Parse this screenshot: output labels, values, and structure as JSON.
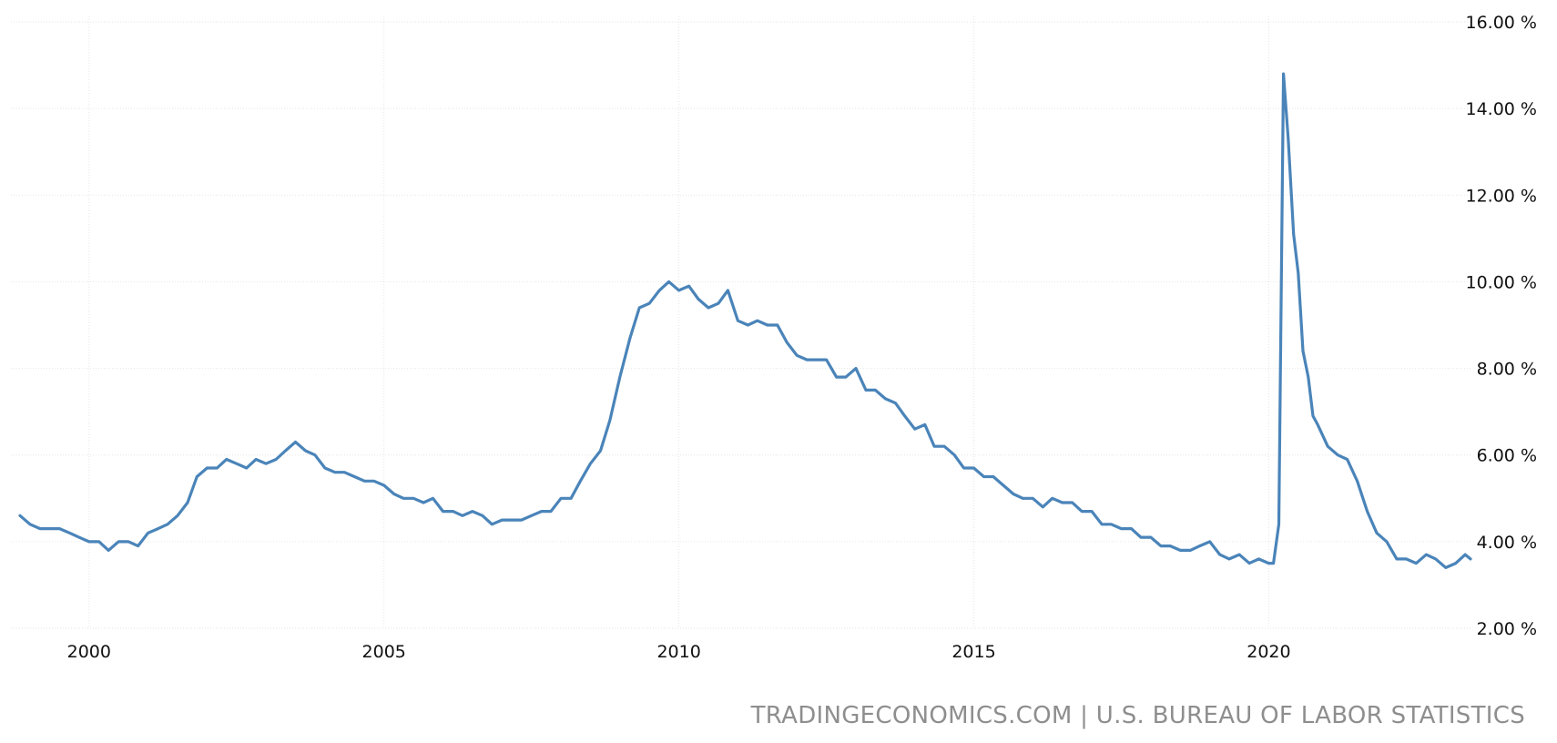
{
  "chart_data": {
    "type": "line",
    "title": "",
    "xlabel": "",
    "ylabel": "",
    "xlim": [
      1998.83,
      2023.42
    ],
    "ylim": [
      2,
      16
    ],
    "x_ticks": [
      {
        "value": 2000,
        "label": "2000"
      },
      {
        "value": 2005,
        "label": "2005"
      },
      {
        "value": 2010,
        "label": "2010"
      },
      {
        "value": 2015,
        "label": "2015"
      },
      {
        "value": 2020,
        "label": "2020"
      }
    ],
    "y_ticks": [
      {
        "value": 2,
        "label": "2.00 %"
      },
      {
        "value": 4,
        "label": "4.00 %"
      },
      {
        "value": 6,
        "label": "6.00 %"
      },
      {
        "value": 8,
        "label": "8.00 %"
      },
      {
        "value": 10,
        "label": "10.00 %"
      },
      {
        "value": 12,
        "label": "12.00 %"
      },
      {
        "value": 14,
        "label": "14.00 %"
      },
      {
        "value": 16,
        "label": "16.00 %"
      }
    ],
    "grid": true,
    "legend": "none",
    "series": [
      {
        "name": "",
        "color": "#4a84b9",
        "points": [
          [
            1998.83,
            4.6
          ],
          [
            1999.0,
            4.4
          ],
          [
            1999.17,
            4.3
          ],
          [
            1999.33,
            4.3
          ],
          [
            1999.5,
            4.3
          ],
          [
            1999.67,
            4.2
          ],
          [
            1999.83,
            4.1
          ],
          [
            2000.0,
            4.0
          ],
          [
            2000.17,
            4.0
          ],
          [
            2000.33,
            3.8
          ],
          [
            2000.5,
            4.0
          ],
          [
            2000.67,
            4.0
          ],
          [
            2000.83,
            3.9
          ],
          [
            2001.0,
            4.2
          ],
          [
            2001.17,
            4.3
          ],
          [
            2001.33,
            4.4
          ],
          [
            2001.5,
            4.6
          ],
          [
            2001.67,
            4.9
          ],
          [
            2001.83,
            5.5
          ],
          [
            2002.0,
            5.7
          ],
          [
            2002.17,
            5.7
          ],
          [
            2002.33,
            5.9
          ],
          [
            2002.5,
            5.8
          ],
          [
            2002.67,
            5.7
          ],
          [
            2002.83,
            5.9
          ],
          [
            2003.0,
            5.8
          ],
          [
            2003.17,
            5.9
          ],
          [
            2003.33,
            6.1
          ],
          [
            2003.5,
            6.3
          ],
          [
            2003.67,
            6.1
          ],
          [
            2003.83,
            6.0
          ],
          [
            2004.0,
            5.7
          ],
          [
            2004.17,
            5.6
          ],
          [
            2004.33,
            5.6
          ],
          [
            2004.5,
            5.5
          ],
          [
            2004.67,
            5.4
          ],
          [
            2004.83,
            5.4
          ],
          [
            2005.0,
            5.3
          ],
          [
            2005.17,
            5.1
          ],
          [
            2005.33,
            5.0
          ],
          [
            2005.5,
            5.0
          ],
          [
            2005.67,
            4.9
          ],
          [
            2005.83,
            5.0
          ],
          [
            2006.0,
            4.7
          ],
          [
            2006.17,
            4.7
          ],
          [
            2006.33,
            4.6
          ],
          [
            2006.5,
            4.7
          ],
          [
            2006.67,
            4.6
          ],
          [
            2006.83,
            4.4
          ],
          [
            2007.0,
            4.5
          ],
          [
            2007.17,
            4.5
          ],
          [
            2007.33,
            4.5
          ],
          [
            2007.5,
            4.6
          ],
          [
            2007.67,
            4.7
          ],
          [
            2007.83,
            4.7
          ],
          [
            2008.0,
            5.0
          ],
          [
            2008.17,
            5.0
          ],
          [
            2008.33,
            5.4
          ],
          [
            2008.5,
            5.8
          ],
          [
            2008.67,
            6.1
          ],
          [
            2008.83,
            6.8
          ],
          [
            2009.0,
            7.8
          ],
          [
            2009.17,
            8.7
          ],
          [
            2009.33,
            9.4
          ],
          [
            2009.5,
            9.5
          ],
          [
            2009.67,
            9.8
          ],
          [
            2009.83,
            10.0
          ],
          [
            2010.0,
            9.8
          ],
          [
            2010.17,
            9.9
          ],
          [
            2010.33,
            9.6
          ],
          [
            2010.5,
            9.4
          ],
          [
            2010.67,
            9.5
          ],
          [
            2010.83,
            9.8
          ],
          [
            2011.0,
            9.1
          ],
          [
            2011.17,
            9.0
          ],
          [
            2011.33,
            9.1
          ],
          [
            2011.5,
            9.0
          ],
          [
            2011.67,
            9.0
          ],
          [
            2011.83,
            8.6
          ],
          [
            2012.0,
            8.3
          ],
          [
            2012.17,
            8.2
          ],
          [
            2012.33,
            8.2
          ],
          [
            2012.5,
            8.2
          ],
          [
            2012.67,
            7.8
          ],
          [
            2012.83,
            7.8
          ],
          [
            2013.0,
            8.0
          ],
          [
            2013.17,
            7.5
          ],
          [
            2013.33,
            7.5
          ],
          [
            2013.5,
            7.3
          ],
          [
            2013.67,
            7.2
          ],
          [
            2013.83,
            6.9
          ],
          [
            2014.0,
            6.6
          ],
          [
            2014.17,
            6.7
          ],
          [
            2014.33,
            6.2
          ],
          [
            2014.5,
            6.2
          ],
          [
            2014.67,
            6.0
          ],
          [
            2014.83,
            5.7
          ],
          [
            2015.0,
            5.7
          ],
          [
            2015.17,
            5.5
          ],
          [
            2015.33,
            5.5
          ],
          [
            2015.5,
            5.3
          ],
          [
            2015.67,
            5.1
          ],
          [
            2015.83,
            5.0
          ],
          [
            2016.0,
            5.0
          ],
          [
            2016.17,
            4.8
          ],
          [
            2016.33,
            5.0
          ],
          [
            2016.5,
            4.9
          ],
          [
            2016.67,
            4.9
          ],
          [
            2016.83,
            4.7
          ],
          [
            2017.0,
            4.7
          ],
          [
            2017.17,
            4.4
          ],
          [
            2017.33,
            4.4
          ],
          [
            2017.5,
            4.3
          ],
          [
            2017.67,
            4.3
          ],
          [
            2017.83,
            4.1
          ],
          [
            2018.0,
            4.1
          ],
          [
            2018.17,
            3.9
          ],
          [
            2018.33,
            3.9
          ],
          [
            2018.5,
            3.8
          ],
          [
            2018.67,
            3.8
          ],
          [
            2018.83,
            3.9
          ],
          [
            2019.0,
            4.0
          ],
          [
            2019.17,
            3.7
          ],
          [
            2019.33,
            3.6
          ],
          [
            2019.5,
            3.7
          ],
          [
            2019.67,
            3.5
          ],
          [
            2019.83,
            3.6
          ],
          [
            2020.0,
            3.5
          ],
          [
            2020.08,
            3.5
          ],
          [
            2020.17,
            4.4
          ],
          [
            2020.25,
            14.8
          ],
          [
            2020.33,
            13.3
          ],
          [
            2020.42,
            11.1
          ],
          [
            2020.5,
            10.2
          ],
          [
            2020.58,
            8.4
          ],
          [
            2020.67,
            7.8
          ],
          [
            2020.75,
            6.9
          ],
          [
            2020.83,
            6.7
          ],
          [
            2021.0,
            6.2
          ],
          [
            2021.17,
            6.0
          ],
          [
            2021.33,
            5.9
          ],
          [
            2021.5,
            5.4
          ],
          [
            2021.67,
            4.7
          ],
          [
            2021.83,
            4.2
          ],
          [
            2022.0,
            4.0
          ],
          [
            2022.17,
            3.6
          ],
          [
            2022.33,
            3.6
          ],
          [
            2022.5,
            3.5
          ],
          [
            2022.67,
            3.7
          ],
          [
            2022.83,
            3.6
          ],
          [
            2023.0,
            3.4
          ],
          [
            2023.17,
            3.5
          ],
          [
            2023.33,
            3.7
          ],
          [
            2023.42,
            3.6
          ]
        ]
      }
    ]
  },
  "source": {
    "text": "TRADINGECONOMICS.COM | U.S. BUREAU OF LABOR STATISTICS"
  }
}
